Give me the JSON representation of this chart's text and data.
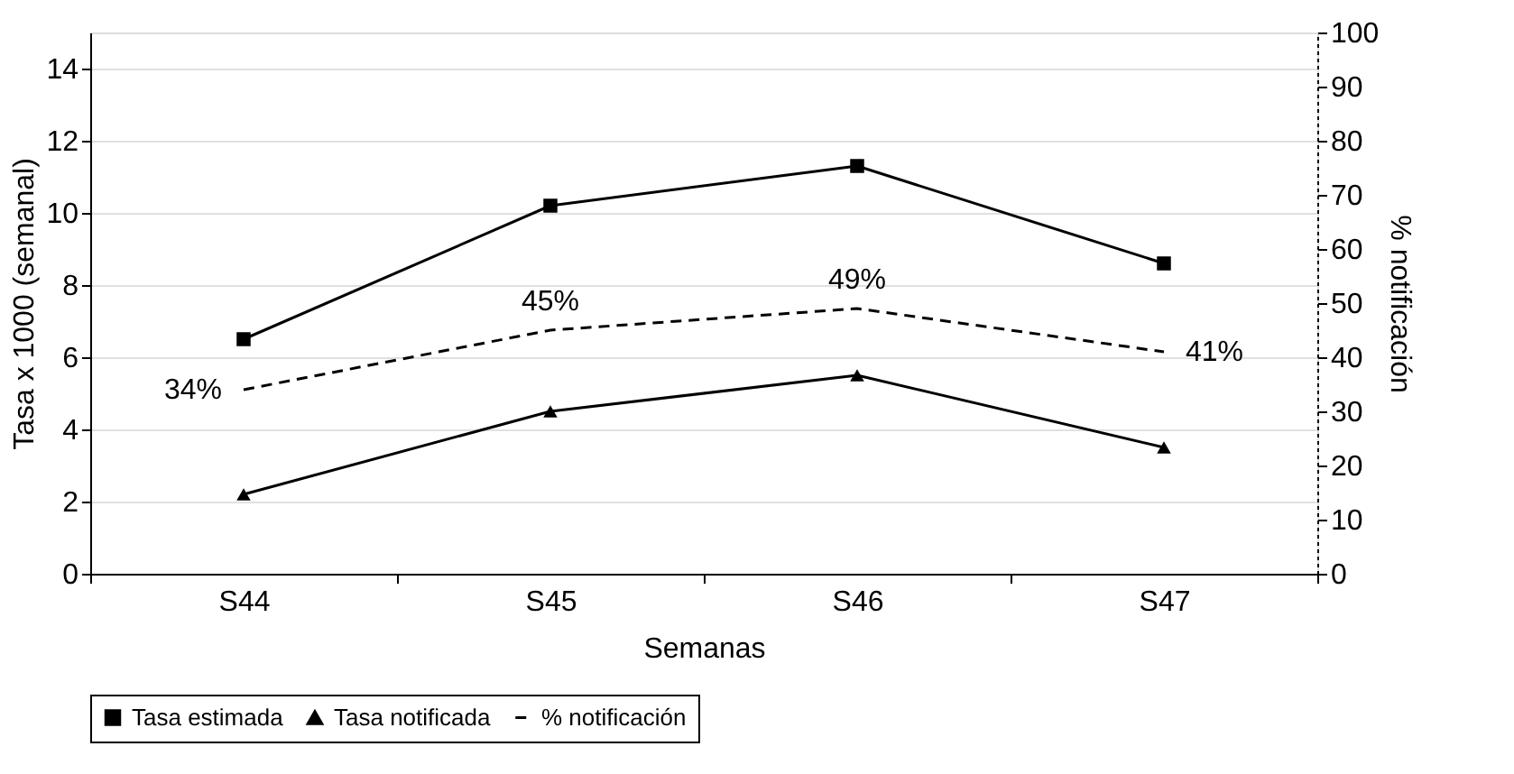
{
  "chart_data": {
    "type": "line",
    "xlabel": "Semanas",
    "ylabel": "Tasa x 1000 (semanal)",
    "y2label": "% notificación",
    "categories": [
      "S44",
      "S45",
      "S46",
      "S47"
    ],
    "series": [
      {
        "name": "Tasa estimada",
        "color": "#000000",
        "marker": "square",
        "line_style": "solid",
        "values": [
          6.5,
          10.2,
          11.3,
          8.6
        ]
      },
      {
        "name": "Tasa notificada",
        "color": "#000000",
        "marker": "triangle",
        "line_style": "solid",
        "values": [
          2.2,
          4.5,
          5.5,
          3.5
        ]
      },
      {
        "name": "% notificación",
        "color": "#000000",
        "marker": "none",
        "line_style": "dashed",
        "axis": "y2",
        "values": [
          34,
          45,
          49,
          41
        ],
        "value_labels": [
          "34%",
          "45%",
          "49%",
          "41%"
        ]
      }
    ],
    "ylim": [
      0,
      15
    ],
    "yticks": [
      0,
      2,
      4,
      6,
      8,
      10,
      12,
      14
    ],
    "y2lim": [
      0,
      100
    ],
    "y2ticks": [
      0,
      10,
      20,
      30,
      40,
      50,
      60,
      70,
      80,
      90,
      100
    ],
    "grid": "y",
    "legend": "bottom"
  }
}
